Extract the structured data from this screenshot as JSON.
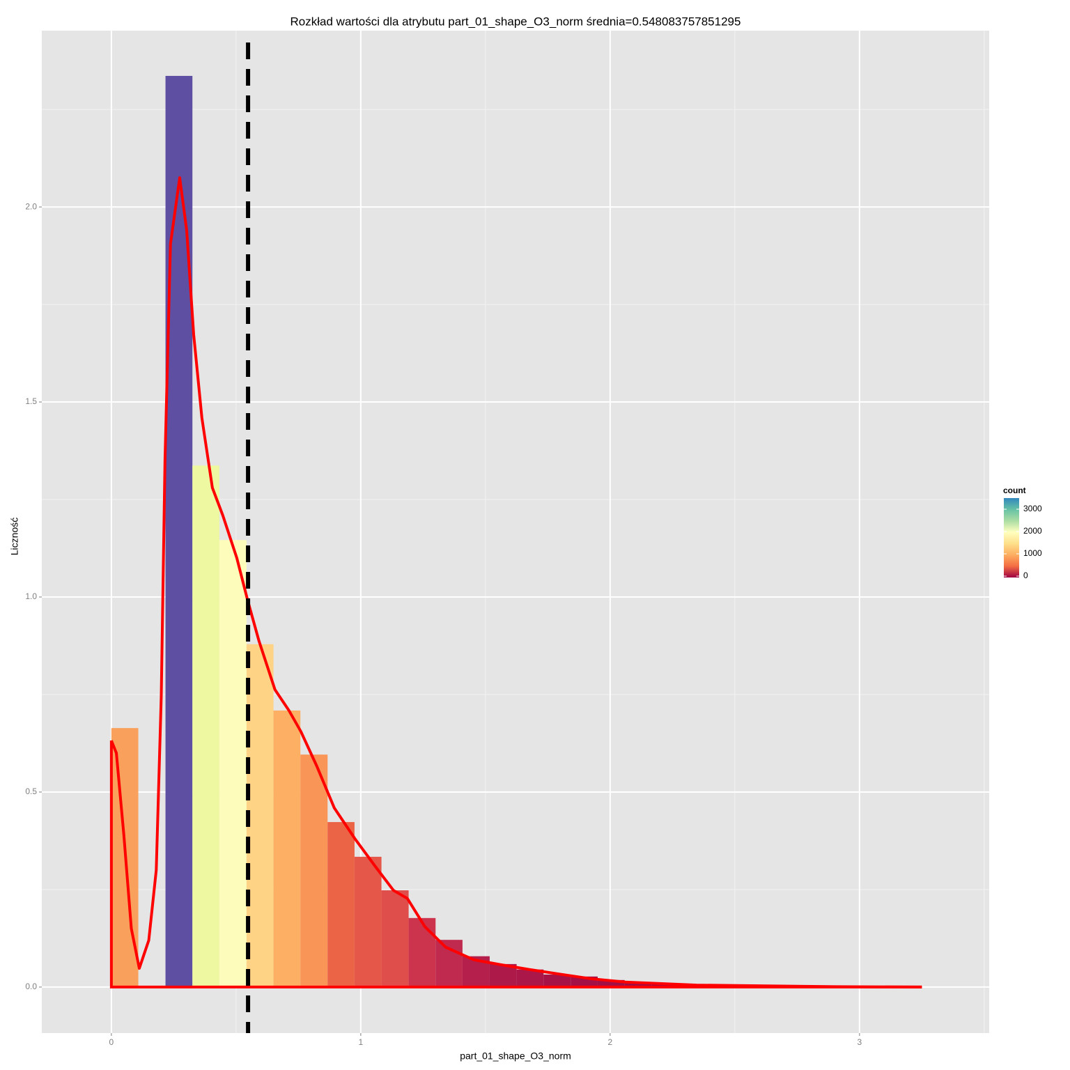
{
  "chart_data": {
    "type": "histogram",
    "title": "Rozkład wartości dla atrybutu part_01_shape_O3_norm średnia=0.548083757851295",
    "x_label": "part_01_shape_O3_norm",
    "y_label": "Liczność",
    "bins": [
      0,
      0.108,
      0.217,
      0.325,
      0.433,
      0.542,
      0.65,
      0.758,
      0.867,
      0.975,
      1.083,
      1.192,
      1.3,
      1.408,
      1.517,
      1.625,
      1.733,
      1.842,
      1.95,
      2.058,
      2.167,
      2.275,
      2.383,
      2.492,
      2.6,
      2.708,
      2.817,
      2.925,
      3.033,
      3.142,
      3.25
    ],
    "values": [
      0.664,
      0,
      2.336,
      1.337,
      1.146,
      0.879,
      0.709,
      0.596,
      0.423,
      0.334,
      0.248,
      0.177,
      0.121,
      0.079,
      0.059,
      0.045,
      0.032,
      0.027,
      0.018,
      0.012,
      0.009,
      0.006,
      0.004,
      0.003,
      0.002,
      0.001,
      0.001,
      0.001,
      0,
      0.001
    ],
    "colors": [
      "#f9a05d",
      "#9e0142",
      "#5e4fa2",
      "#edf8a0",
      "#fefcbb",
      "#fed385",
      "#fdb063",
      "#f99557",
      "#ec6446",
      "#e55749",
      "#df4e4b",
      "#cc334d",
      "#c02a4e",
      "#b51f4b",
      "#ad1949",
      "#ab1748",
      "#a61246",
      "#a31045",
      "#a10f44",
      "#a00d44",
      "#9f0b43",
      "#9f0b43",
      "#9f0b43",
      "#9f0b43",
      "#9f0b43",
      "#9f0b43",
      "#9f0b43",
      "#9f0b43",
      "#9f0b43",
      "#9f0b43"
    ],
    "density": {
      "color": "#ff0000",
      "x": [
        0,
        0.02,
        0.05,
        0.08,
        0.112,
        0.15,
        0.18,
        0.2,
        0.215,
        0.237,
        0.274,
        0.302,
        0.33,
        0.363,
        0.405,
        0.447,
        0.503,
        0.545,
        0.592,
        0.656,
        0.712,
        0.76,
        0.824,
        0.894,
        0.978,
        1.061,
        1.131,
        1.187,
        1.257,
        1.341,
        1.453,
        1.564,
        1.676,
        1.788,
        1.927,
        2.067,
        2.346,
        2.626,
        2.905,
        3.25
      ],
      "y": [
        0.632,
        0.6,
        0.39,
        0.15,
        0.048,
        0.12,
        0.3,
        0.745,
        1.35,
        1.905,
        2.075,
        1.94,
        1.673,
        1.459,
        1.28,
        1.209,
        1.1,
        0.995,
        0.887,
        0.7625,
        0.709,
        0.655,
        0.566,
        0.459,
        0.379,
        0.307,
        0.248,
        0.227,
        0.155,
        0.102,
        0.07,
        0.057,
        0.045,
        0.034,
        0.021,
        0.0125,
        0.005,
        0.003,
        0.001,
        0
      ]
    },
    "mean": 0.548083757851295,
    "mean_color": "#000000",
    "xlim": [
      -0.279,
      3.52
    ],
    "ylim": [
      -0.118,
      2.452
    ],
    "xticks": [
      0,
      1,
      2,
      3
    ],
    "yticks": [
      {
        "value": 0,
        "label": "0.0"
      },
      0.5,
      {
        "value": 1,
        "label": "1.0"
      },
      1.5,
      {
        "value": 2,
        "label": "2.0"
      }
    ],
    "grid": true,
    "colorbar": {
      "title": "count",
      "lim": [
        -62,
        3500
      ],
      "ticks": [
        0,
        1000,
        2000,
        3000
      ],
      "colors": [
        "#9e0142",
        "#f46d43",
        "#fdae61",
        "#fee08b",
        "#ffffbf",
        "#abdda4",
        "#66c2a5",
        "#3288bd"
      ]
    }
  }
}
